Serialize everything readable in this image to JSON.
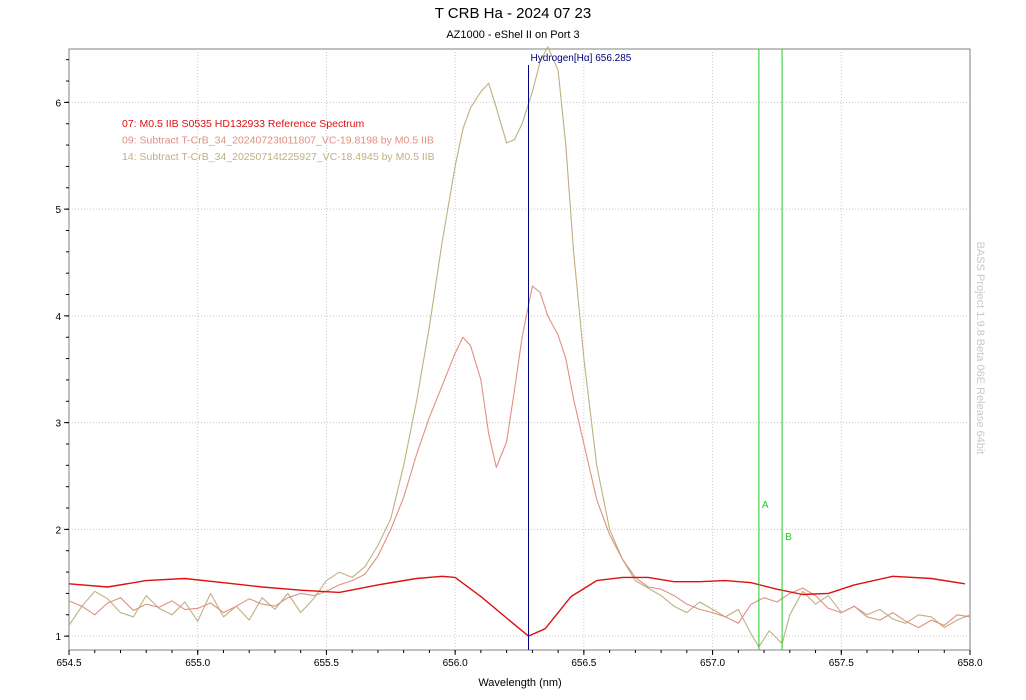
{
  "chart_data": {
    "type": "line",
    "title": "T CRB Ha -  2024 07 23",
    "subtitle": "AZ1000 - eShel II on Port 3",
    "xlabel": "Wavelength (nm)",
    "ylabel": "",
    "xlim": [
      654.5,
      658.0
    ],
    "ylim": [
      0.87,
      6.5
    ],
    "x_ticks": [
      "654.5",
      "655.0",
      "655.5",
      "656.0",
      "656.5",
      "657.0",
      "657.5",
      "658.0"
    ],
    "x_minor_step": 0.1,
    "y_ticks": [
      "1",
      "2",
      "3",
      "4",
      "5",
      "6"
    ],
    "y_minor_step": 0.2,
    "grid": true,
    "legend_position": "top-left",
    "markers": [
      {
        "label": "Hydrogen[Hα] 656.285",
        "x": 656.285,
        "color": "#000080",
        "label_pos": "top"
      },
      {
        "label": "A",
        "x": 657.18,
        "color": "#22cc22",
        "label_y": 2.2
      },
      {
        "label": "B",
        "x": 657.27,
        "color": "#22cc22",
        "label_y": 1.9
      }
    ],
    "series": [
      {
        "name": "07: M0.5 IIB S0535 HD132933 Reference Spectrum",
        "color": "#dd1111",
        "x": [
          654.5,
          654.65,
          654.8,
          654.95,
          655.1,
          655.25,
          655.4,
          655.55,
          655.7,
          655.85,
          655.95,
          656.0,
          656.1,
          656.2,
          656.285,
          656.35,
          656.45,
          656.55,
          656.65,
          656.75,
          656.85,
          656.95,
          657.05,
          657.15,
          657.25,
          657.35,
          657.45,
          657.55,
          657.7,
          657.85,
          657.98
        ],
        "y": [
          1.49,
          1.46,
          1.52,
          1.54,
          1.5,
          1.46,
          1.43,
          1.41,
          1.48,
          1.54,
          1.56,
          1.55,
          1.37,
          1.17,
          1.0,
          1.07,
          1.37,
          1.52,
          1.55,
          1.55,
          1.51,
          1.51,
          1.52,
          1.5,
          1.44,
          1.39,
          1.4,
          1.48,
          1.56,
          1.54,
          1.49
        ]
      },
      {
        "name": "09: Subtract T-CrB_34_20240723t011807_VC-19.8198 by M0.5 IIB",
        "color": "#e09080",
        "x": [
          654.5,
          654.55,
          654.6,
          654.65,
          654.7,
          654.75,
          654.8,
          654.85,
          654.9,
          654.95,
          655.0,
          655.05,
          655.1,
          655.15,
          655.2,
          655.25,
          655.3,
          655.35,
          655.4,
          655.45,
          655.5,
          655.55,
          655.6,
          655.65,
          655.7,
          655.75,
          655.8,
          655.85,
          655.9,
          655.95,
          656.0,
          656.03,
          656.06,
          656.1,
          656.13,
          656.16,
          656.2,
          656.23,
          656.26,
          656.3,
          656.33,
          656.36,
          656.4,
          656.43,
          656.46,
          656.5,
          656.55,
          656.6,
          656.65,
          656.7,
          656.75,
          656.8,
          656.85,
          656.9,
          656.95,
          657.0,
          657.05,
          657.1,
          657.15,
          657.2,
          657.25,
          657.3,
          657.35,
          657.4,
          657.45,
          657.5,
          657.55,
          657.6,
          657.65,
          657.7,
          657.75,
          657.8,
          657.85,
          657.9,
          657.95,
          658.0
        ],
        "y": [
          1.33,
          1.28,
          1.2,
          1.31,
          1.36,
          1.24,
          1.3,
          1.27,
          1.33,
          1.25,
          1.26,
          1.31,
          1.22,
          1.28,
          1.35,
          1.3,
          1.28,
          1.36,
          1.4,
          1.38,
          1.42,
          1.48,
          1.52,
          1.58,
          1.75,
          2.0,
          2.3,
          2.7,
          3.05,
          3.35,
          3.65,
          3.8,
          3.72,
          3.4,
          2.9,
          2.58,
          2.82,
          3.3,
          3.8,
          4.28,
          4.22,
          4.0,
          3.82,
          3.6,
          3.22,
          2.8,
          2.28,
          1.95,
          1.72,
          1.55,
          1.46,
          1.44,
          1.38,
          1.3,
          1.25,
          1.22,
          1.18,
          1.12,
          1.3,
          1.36,
          1.32,
          1.4,
          1.45,
          1.38,
          1.26,
          1.22,
          1.28,
          1.18,
          1.15,
          1.22,
          1.14,
          1.08,
          1.15,
          1.1,
          1.2,
          1.18
        ]
      },
      {
        "name": "14: Subtract T-CrB_34_20250714t225927_VC-18.4945 by M0.5 IIB",
        "color": "#bfb080",
        "x": [
          654.5,
          654.55,
          654.6,
          654.65,
          654.7,
          654.75,
          654.8,
          654.85,
          654.9,
          654.95,
          655.0,
          655.05,
          655.1,
          655.15,
          655.2,
          655.25,
          655.3,
          655.35,
          655.4,
          655.45,
          655.5,
          655.55,
          655.6,
          655.65,
          655.7,
          655.75,
          655.8,
          655.85,
          655.9,
          655.95,
          656.0,
          656.03,
          656.06,
          656.1,
          656.13,
          656.16,
          656.2,
          656.23,
          656.26,
          656.3,
          656.33,
          656.36,
          656.4,
          656.43,
          656.46,
          656.5,
          656.55,
          656.6,
          656.65,
          656.7,
          656.75,
          656.8,
          656.85,
          656.9,
          656.95,
          657.0,
          657.05,
          657.1,
          657.15,
          657.18,
          657.22,
          657.27,
          657.3,
          657.35,
          657.4,
          657.45,
          657.5,
          657.55,
          657.6,
          657.65,
          657.7,
          657.75,
          657.8,
          657.85,
          657.9,
          657.95,
          658.0
        ],
        "y": [
          1.1,
          1.28,
          1.42,
          1.35,
          1.22,
          1.18,
          1.38,
          1.26,
          1.2,
          1.32,
          1.14,
          1.4,
          1.18,
          1.28,
          1.15,
          1.36,
          1.25,
          1.4,
          1.22,
          1.35,
          1.52,
          1.6,
          1.55,
          1.65,
          1.85,
          2.1,
          2.6,
          3.2,
          3.9,
          4.7,
          5.4,
          5.75,
          5.95,
          6.1,
          6.18,
          5.95,
          5.62,
          5.65,
          5.8,
          6.1,
          6.38,
          6.52,
          6.3,
          5.6,
          4.6,
          3.6,
          2.6,
          2.0,
          1.72,
          1.52,
          1.45,
          1.38,
          1.28,
          1.22,
          1.32,
          1.25,
          1.18,
          1.25,
          1.02,
          0.9,
          1.05,
          0.93,
          1.2,
          1.42,
          1.3,
          1.38,
          1.22,
          1.28,
          1.2,
          1.25,
          1.16,
          1.12,
          1.2,
          1.18,
          1.08,
          1.15,
          1.2
        ]
      }
    ]
  },
  "watermark": "BASS Project 1.9.8 Beta 06E Release 64bit"
}
